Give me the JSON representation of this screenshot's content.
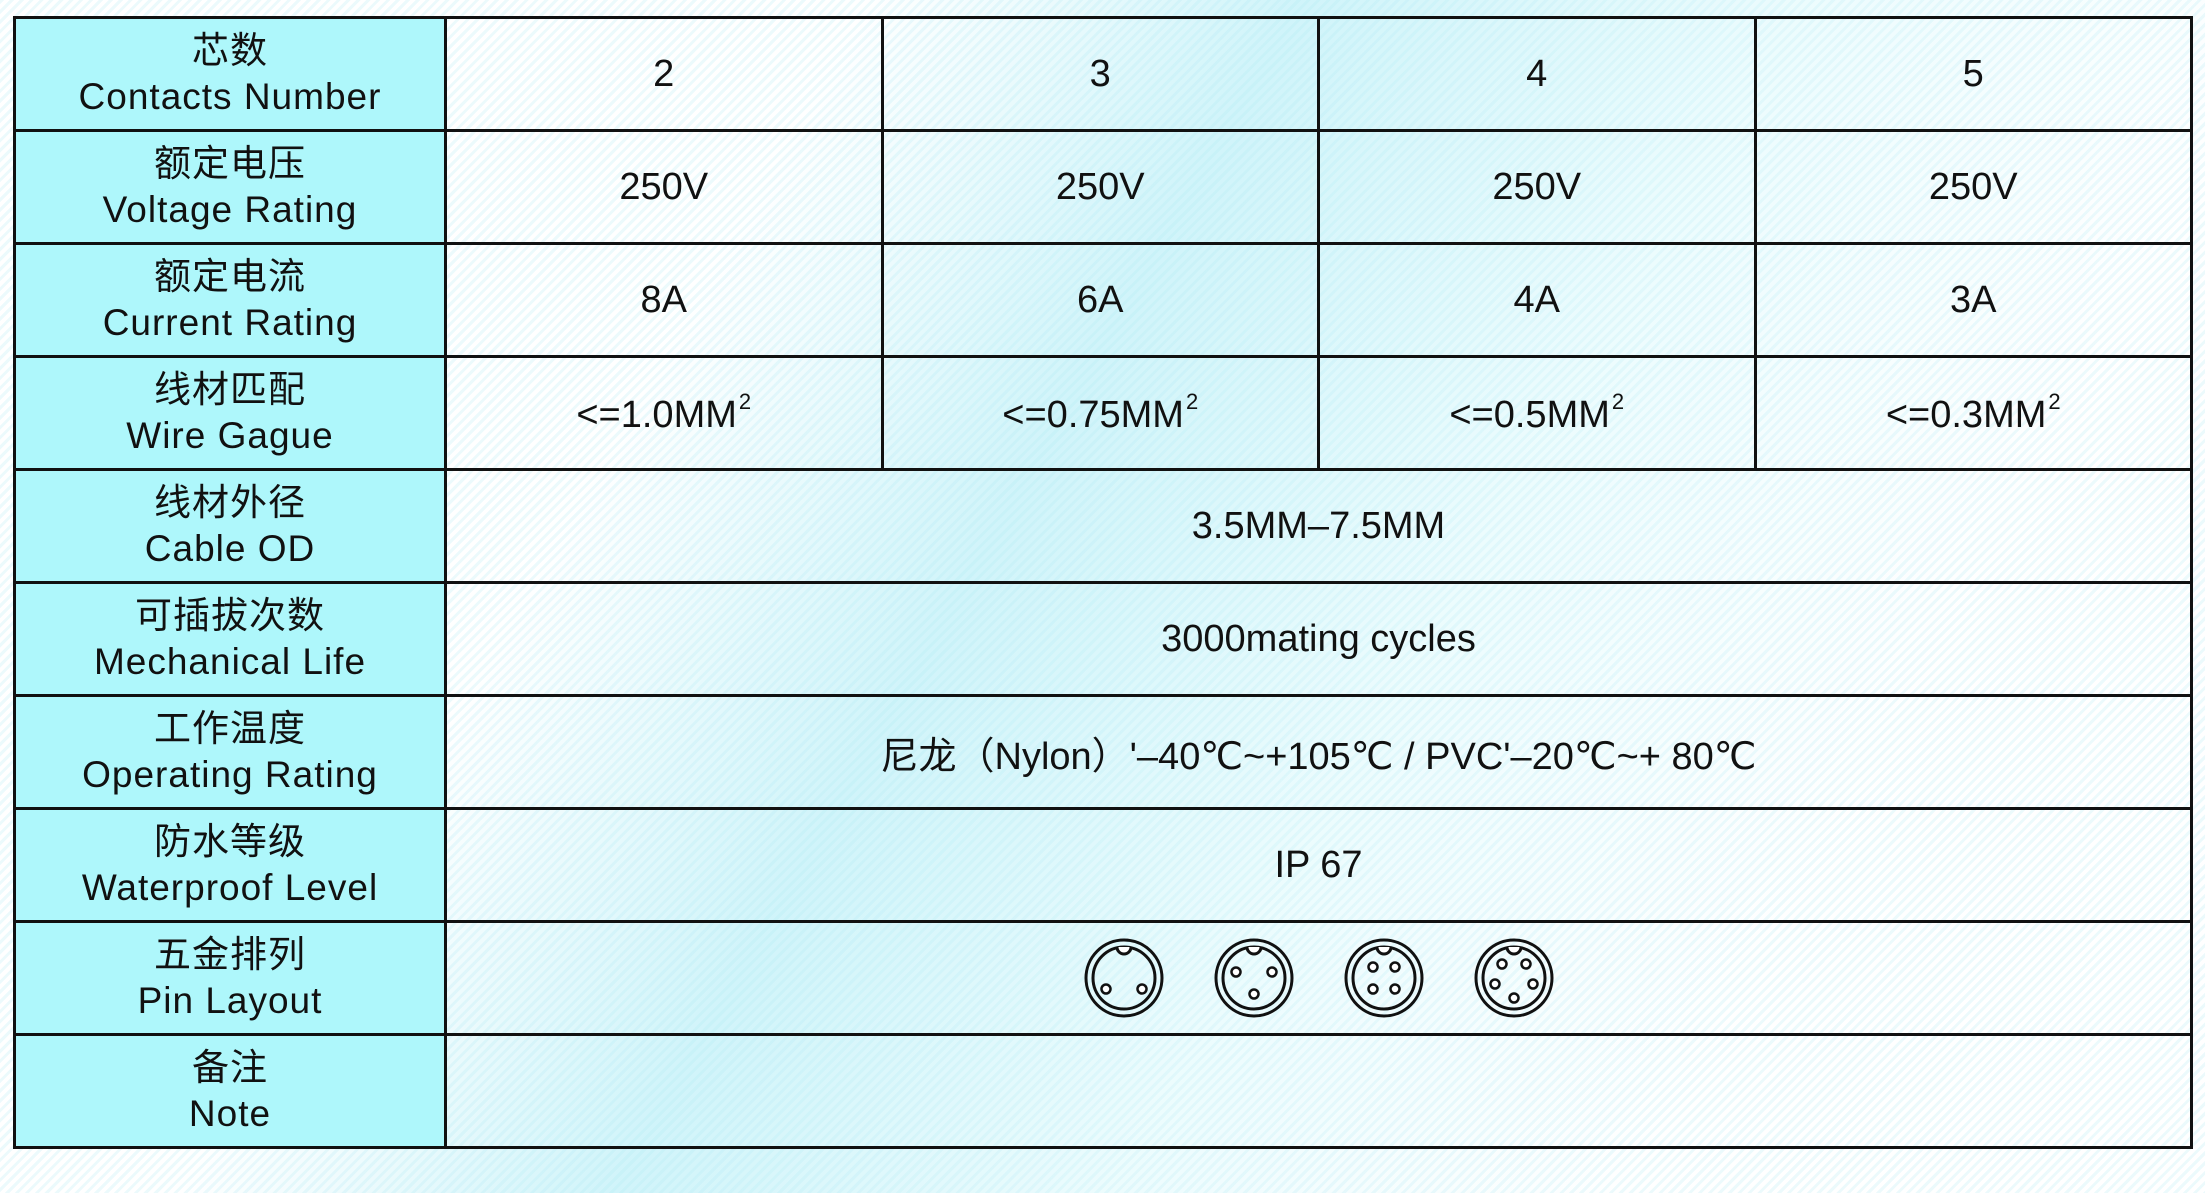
{
  "rows": [
    {
      "cn": "芯数",
      "en": "Contacts Number",
      "values": [
        "2",
        "3",
        "4",
        "5"
      ]
    },
    {
      "cn": "额定电压",
      "en": "Voltage Rating",
      "values": [
        "250V",
        "250V",
        "250V",
        "250V"
      ]
    },
    {
      "cn": "额定电流",
      "en": "Current Rating",
      "values": [
        "8A",
        "6A",
        "4A",
        "3A"
      ]
    },
    {
      "cn": "线材匹配",
      "en": "Wire Gague",
      "values": [
        "<=1.0MM",
        "<=0.75MM",
        "<=0.5MM",
        "<=0.3MM"
      ],
      "superscript": "2"
    },
    {
      "cn": "线材外径",
      "en": "Cable OD",
      "value": "3.5MM–7.5MM"
    },
    {
      "cn": "可插拔次数",
      "en": "Mechanical Life",
      "value": "3000mating cycles"
    },
    {
      "cn": "工作温度",
      "en": "Operating Rating",
      "value": "尼龙（Nylon）'–40℃~+105℃ / PVC'–20℃~+ 80℃"
    },
    {
      "cn": "防水等级",
      "en": "Waterproof Level",
      "value": "IP 67"
    },
    {
      "cn": "五金排列",
      "en": "Pin Layout",
      "pin_counts": [
        2,
        3,
        4,
        5
      ],
      "pin_icons": [
        "pin-layout-2-icon",
        "pin-layout-3-icon",
        "pin-layout-4-icon",
        "pin-layout-5-icon"
      ]
    },
    {
      "cn": "备注",
      "en": "Note",
      "value": ""
    }
  ],
  "colors": {
    "label_bg": "#aef7fb",
    "border": "#111111"
  }
}
